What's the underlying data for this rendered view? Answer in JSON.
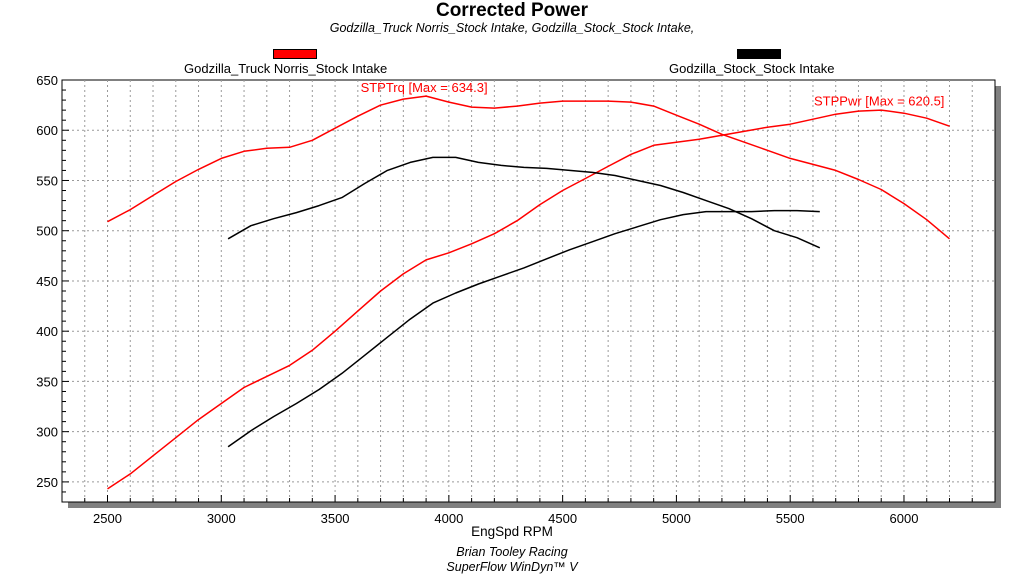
{
  "chart_data": {
    "type": "line",
    "title": "Corrected Power",
    "subtitle": "Godzilla_Truck Norris_Stock Intake, Godzilla_Stock_Stock Intake,",
    "xlabel": "EngSpd RPM",
    "ylabel": "",
    "xlim": [
      2300,
      6400
    ],
    "ylim": [
      230,
      650
    ],
    "x_ticks": [
      2500,
      3000,
      3500,
      4000,
      4500,
      5000,
      5500,
      6000
    ],
    "y_ticks": [
      250,
      300,
      350,
      400,
      450,
      500,
      550,
      600,
      650
    ],
    "grid": true,
    "legend": [
      {
        "label": "Godzilla_Truck Norris_Stock Intake",
        "color": "#ff0000"
      },
      {
        "label": "Godzilla_Stock_Stock Intake",
        "color": "#000000"
      }
    ],
    "annotations": [
      {
        "text": "STPTrq [Max = 634.3]",
        "x": 3900,
        "y": 634.3,
        "color": "#ff0000"
      },
      {
        "text": "STPPwr [Max = 620.5]",
        "x": 5900,
        "y": 620.5,
        "color": "#ff0000"
      }
    ],
    "series": [
      {
        "color": "#ff0000",
        "x": [
          2500,
          2600,
          2700,
          2800,
          2900,
          3000,
          3100,
          3200,
          3300,
          3400,
          3500,
          3600,
          3700,
          3800,
          3900,
          4000,
          4100,
          4200,
          4300,
          4400,
          4500,
          4600,
          4700,
          4800,
          4900,
          5000,
          5100,
          5200,
          5300,
          5400,
          5500,
          5600,
          5700,
          5800,
          5900,
          6000,
          6100,
          6200
        ],
        "values": [
          509,
          521,
          535,
          549,
          561,
          572,
          579,
          582,
          583,
          590,
          602,
          614,
          625,
          631,
          634,
          628,
          623,
          622,
          624,
          627,
          629,
          629,
          629,
          628,
          624,
          615,
          606,
          596,
          588,
          580,
          572,
          566,
          560,
          551,
          541,
          527,
          511,
          492
        ]
      },
      {
        "color": "#ff0000",
        "x": [
          2500,
          2600,
          2700,
          2800,
          2900,
          3000,
          3100,
          3200,
          3300,
          3400,
          3500,
          3600,
          3700,
          3800,
          3900,
          4000,
          4100,
          4200,
          4300,
          4400,
          4500,
          4600,
          4700,
          4800,
          4900,
          5000,
          5100,
          5200,
          5300,
          5400,
          5500,
          5600,
          5700,
          5800,
          5900,
          6000,
          6100,
          6200
        ],
        "values": [
          243,
          258,
          276,
          294,
          312,
          328,
          344,
          355,
          366,
          381,
          400,
          420,
          440,
          457,
          471,
          478,
          487,
          497,
          510,
          526,
          540,
          552,
          564,
          576,
          585,
          588,
          591,
          595,
          599,
          603,
          606,
          611,
          616,
          619,
          620,
          617,
          612,
          604
        ]
      },
      {
        "color": "#000000",
        "x": [
          3030,
          3130,
          3230,
          3330,
          3430,
          3530,
          3630,
          3730,
          3830,
          3930,
          4030,
          4130,
          4230,
          4330,
          4430,
          4530,
          4630,
          4730,
          4830,
          4930,
          5030,
          5130,
          5230,
          5330,
          5430,
          5530,
          5630
        ],
        "values": [
          492,
          505,
          512,
          518,
          525,
          533,
          547,
          560,
          568,
          573,
          573,
          568,
          565,
          563,
          562,
          560,
          558,
          555,
          550,
          545,
          538,
          530,
          522,
          512,
          500,
          493,
          483
        ]
      },
      {
        "color": "#000000",
        "x": [
          3030,
          3130,
          3230,
          3330,
          3430,
          3530,
          3630,
          3730,
          3830,
          3930,
          4030,
          4130,
          4230,
          4330,
          4430,
          4530,
          4630,
          4730,
          4830,
          4930,
          5030,
          5130,
          5230,
          5330,
          5430,
          5530,
          5630
        ],
        "values": [
          285,
          301,
          315,
          328,
          342,
          358,
          376,
          394,
          412,
          428,
          438,
          447,
          455,
          463,
          472,
          481,
          489,
          497,
          504,
          511,
          516,
          519,
          519,
          519,
          520,
          520,
          519
        ]
      }
    ]
  },
  "footer": {
    "line1": "Brian Tooley Racing",
    "line2": "SuperFlow WinDyn™ V"
  }
}
